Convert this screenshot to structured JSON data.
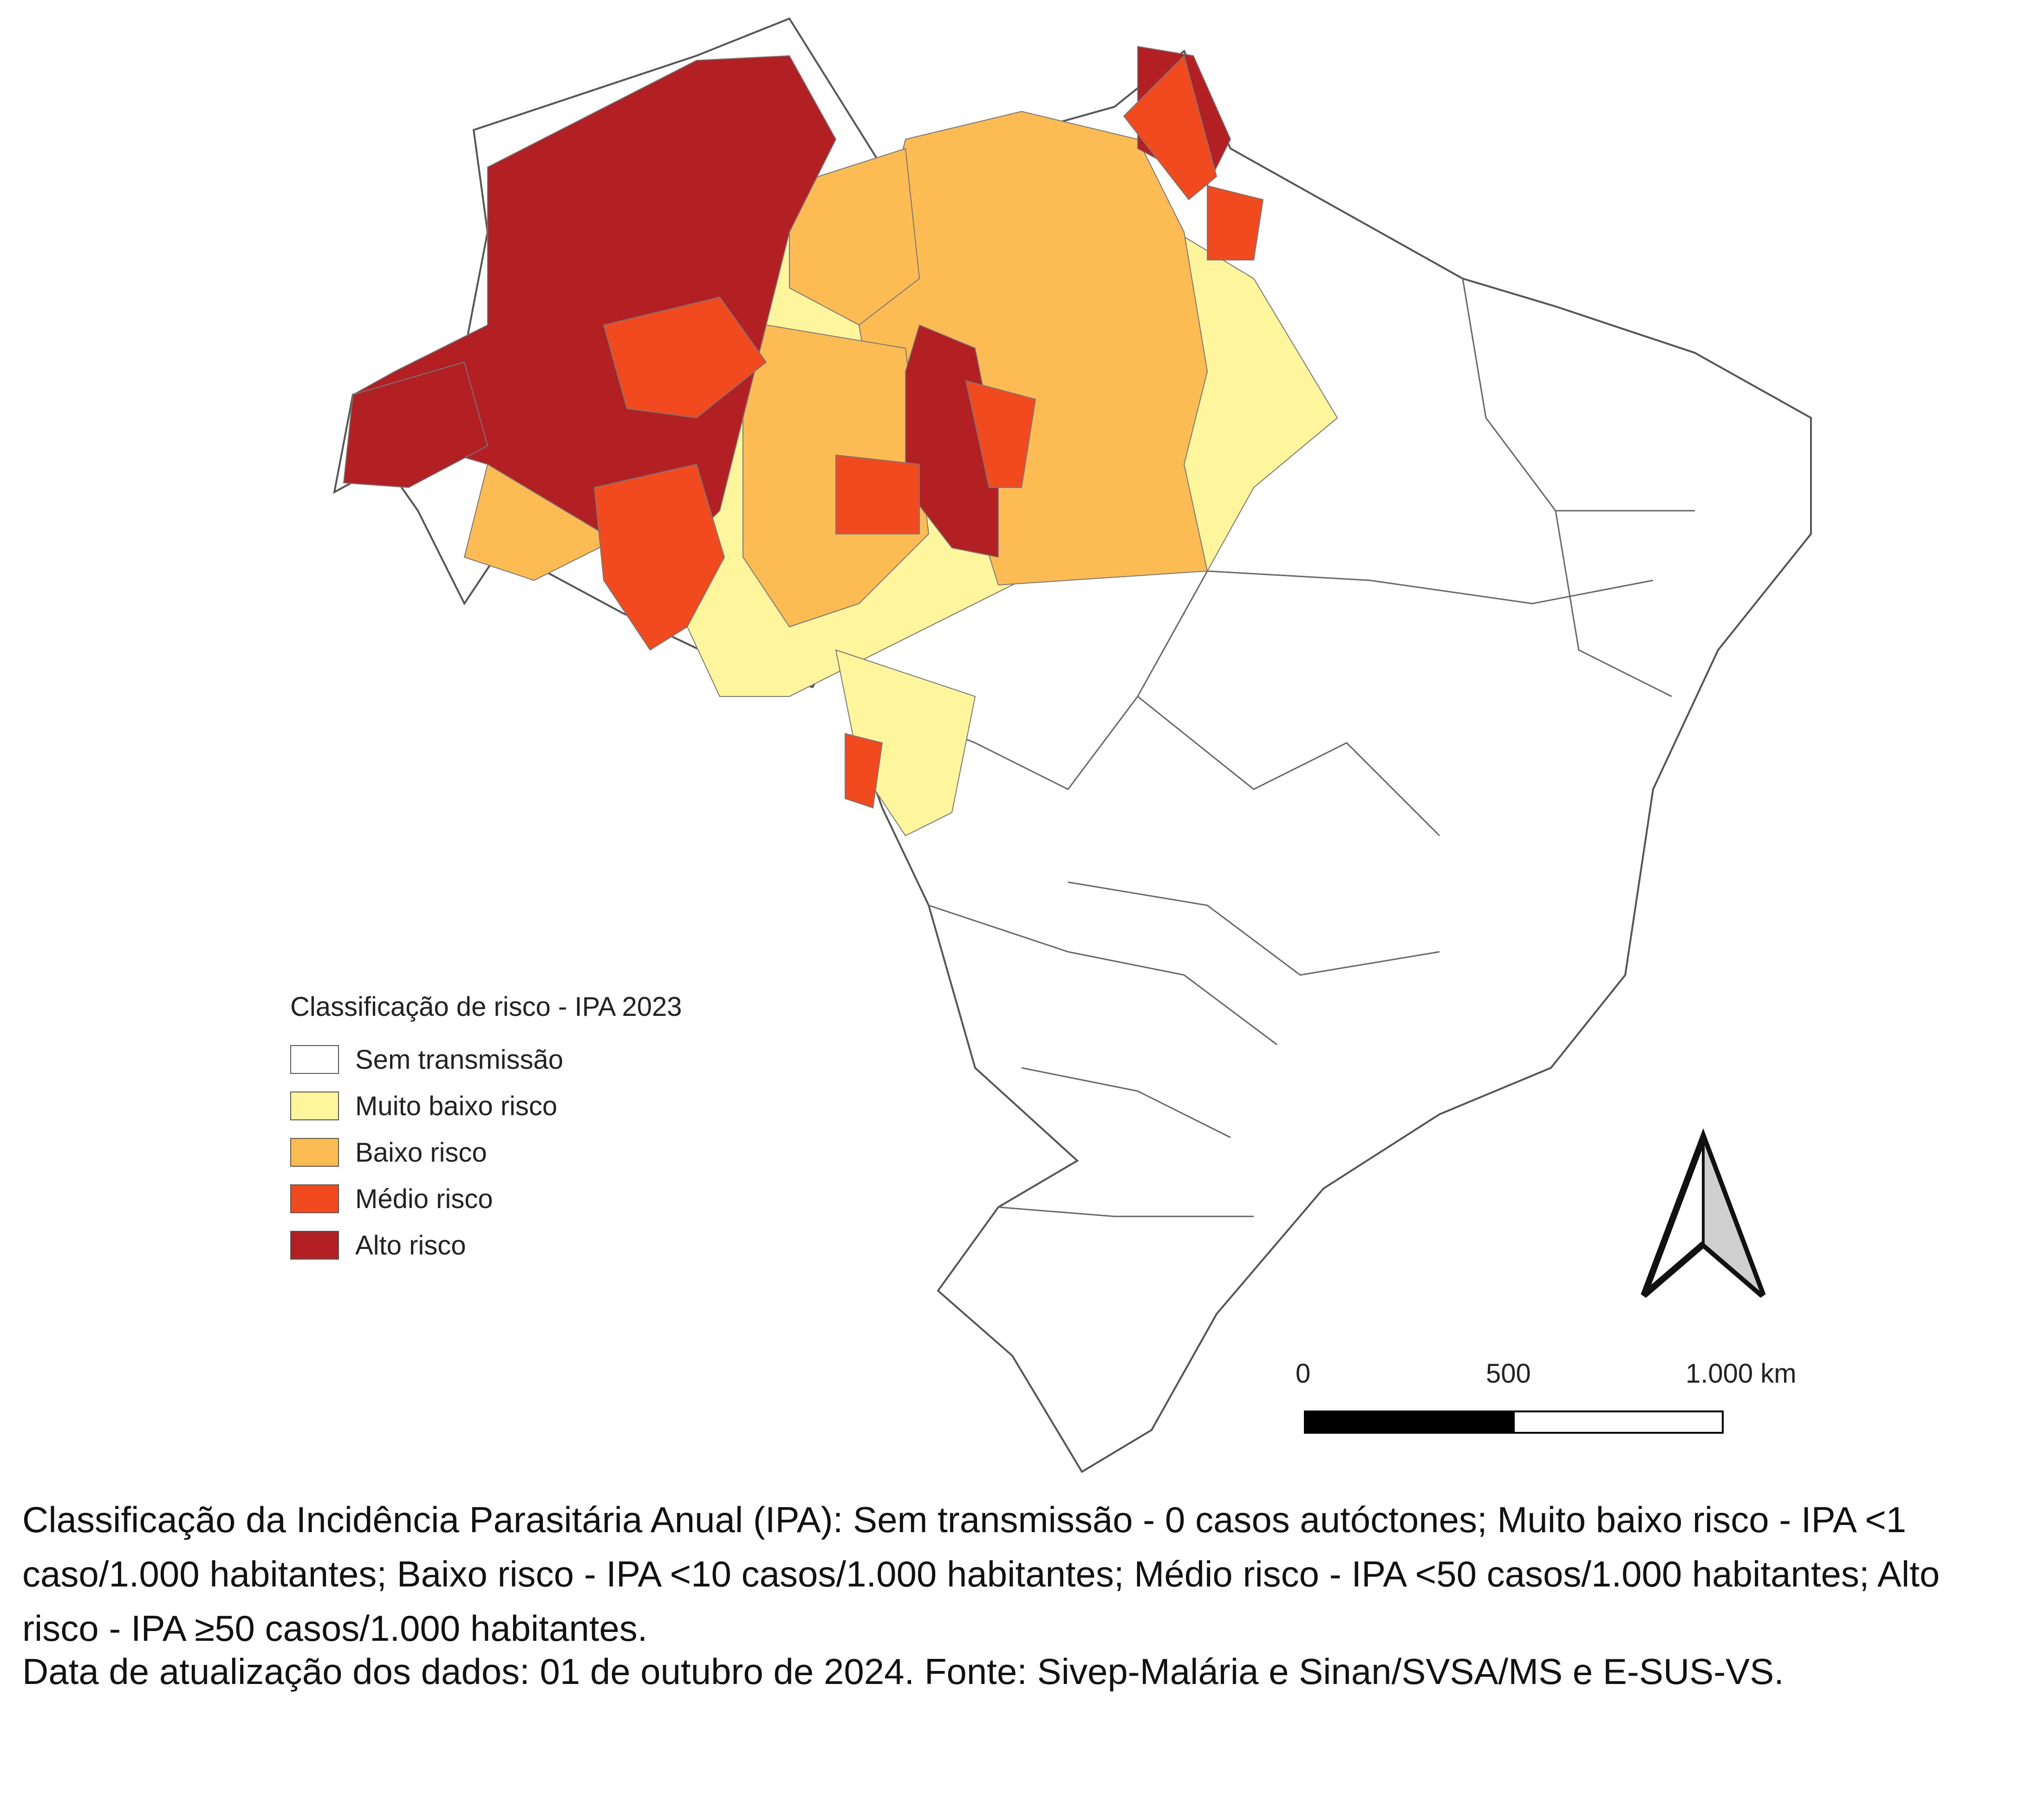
{
  "legend": {
    "title": "Classificação de risco - IPA 2023",
    "items": [
      {
        "label": "Sem transmissão",
        "color": "#ffffff"
      },
      {
        "label": "Muito baixo risco",
        "color": "#fff59d"
      },
      {
        "label": "Baixo risco",
        "color": "#fdbb54"
      },
      {
        "label": "Médio risco",
        "color": "#f04a1e"
      },
      {
        "label": "Alto risco",
        "color": "#b22024"
      }
    ]
  },
  "scale_bar": {
    "labels": [
      "0",
      "500",
      "1.000 km"
    ]
  },
  "north_arrow": {
    "icon": "north-arrow-icon"
  },
  "caption": {
    "classification": "Classificação da Incidência Parasitária Anual (IPA): Sem transmissão - 0 casos autóctones; Muito baixo risco - IPA <1 caso/1.000 habitantes; Baixo risco - IPA <10 casos/1.000 habitantes; Médio risco - IPA <50 casos/1.000 habitantes; Alto risco - IPA ≥50 casos/1.000 habitantes.",
    "update_label": "Data de atualização dos dados:",
    "update_date": "01 de outubro de 2024.",
    "source": "Fonte: Sivep-Malária e Sinan/SVSA/MS e E-SUS-VS."
  }
}
